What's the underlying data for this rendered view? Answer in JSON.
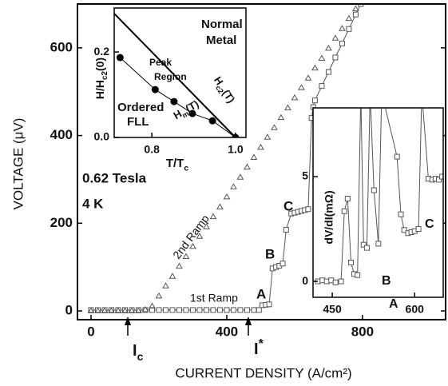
{
  "chart_data": [
    {
      "type": "line",
      "ylabel": "VOLTAGE (μV)",
      "xlabel": "CURRENT DENSITY (A/cm²)",
      "xlim": [
        -40,
        1045
      ],
      "ylim": [
        -20,
        700
      ],
      "xticks": [
        0,
        400,
        800
      ],
      "yticks": [
        0,
        200,
        400,
        600
      ],
      "series": [
        {
          "name": "1st Ramp",
          "marker": "square",
          "line": true,
          "color": "#555555",
          "x": [
            0,
            20,
            40,
            60,
            80,
            100,
            120,
            140,
            160,
            180,
            200,
            220,
            240,
            260,
            280,
            300,
            320,
            340,
            360,
            380,
            400,
            420,
            440,
            460,
            480,
            495,
            505,
            515,
            525,
            535,
            545,
            555,
            565,
            575,
            590,
            600,
            610,
            620,
            630,
            640,
            650,
            655,
            660,
            680,
            700,
            720,
            740,
            760,
            780,
            795
          ],
          "values": [
            2,
            2,
            2,
            2,
            2,
            2,
            2,
            2,
            2,
            2,
            2,
            2,
            2,
            2,
            2,
            2,
            2,
            2,
            2,
            2,
            2,
            2,
            2,
            2,
            2,
            2,
            13,
            14,
            15,
            97,
            100,
            103,
            108,
            185,
            222,
            224,
            226,
            228,
            230,
            232,
            440,
            465,
            480,
            513,
            545,
            578,
            610,
            643,
            676,
            700
          ]
        },
        {
          "name": "2nd Ramp",
          "marker": "triangle",
          "line": false,
          "color": "#555555",
          "x": [
            0,
            20,
            40,
            60,
            80,
            100,
            120,
            140,
            160,
            180,
            200,
            220,
            240,
            260,
            280,
            300,
            320,
            340,
            360,
            380,
            400,
            420,
            440,
            460,
            480,
            500,
            520,
            540,
            560,
            580,
            600,
            620,
            640,
            660,
            680,
            700,
            720,
            740,
            760,
            780
          ],
          "values": [
            0,
            0,
            0,
            0,
            0,
            0,
            0,
            0,
            3,
            11,
            34,
            57,
            79,
            102,
            124,
            147,
            170,
            192,
            215,
            237,
            260,
            283,
            305,
            328,
            350,
            373,
            396,
            418,
            441,
            463,
            486,
            509,
            531,
            554,
            576,
            599,
            622,
            644,
            667,
            689
          ]
        }
      ],
      "annotations": [
        "0.62 Tesla",
        "4 K",
        "2nd Ramp",
        "1st Ramp",
        "A",
        "B",
        "C",
        {
          "text": "I",
          "sub": "c"
        },
        {
          "text": "I",
          "sup": "*"
        }
      ]
    },
    {
      "type": "line",
      "xlabel": {
        "text": "T/T",
        "sub": "c"
      },
      "ylabel": {
        "text": "H/H",
        "sub": "c2",
        "rest": "(0)"
      },
      "xlim": [
        0.71,
        1.025
      ],
      "ylim": [
        0,
        0.303
      ],
      "xticks": [
        0.8,
        {
          "value": 1,
          "label": "1.0"
        }
      ],
      "yticks": [
        {
          "value": 0,
          "label": "0.0"
        },
        0.2
      ],
      "series": [
        {
          "marker": "none",
          "line": true,
          "color": "#000000",
          "x": [
            0.71,
            1.0
          ],
          "values": [
            0.29,
            0
          ]
        },
        {
          "marker": "circle",
          "line": true,
          "color": "#000000",
          "x": [
            0.724,
            0.808,
            0.853,
            0.897,
            0.945,
            1.0
          ],
          "values": [
            0.187,
            0.112,
            0.084,
            0.056,
            0.039,
            0
          ]
        }
      ],
      "annotations": [
        "Normal",
        "Metal",
        "Peak",
        "Region",
        "Ordered",
        "FLL",
        {
          "text": "H",
          "sub": "c2",
          "rest": "(T)"
        },
        {
          "text": "H",
          "sub": "m",
          "rest": "(T)"
        }
      ]
    },
    {
      "type": "line",
      "ylabel": "dV/dI(mΩ)",
      "xlim": [
        415,
        652
      ],
      "ylim": [
        -0.76,
        8.28
      ],
      "xticks": [
        450,
        600
      ],
      "yticks": [
        0,
        5
      ],
      "series": [
        {
          "marker": "square",
          "line": true,
          "color": "#555555",
          "x": [
            424,
            432,
            440,
            448,
            456,
            466,
            472,
            478,
            484,
            490,
            496,
            502,
            507,
            513,
            519,
            526,
            534,
            540,
            568,
            575,
            581,
            588,
            594,
            600,
            607,
            613,
            625,
            632,
            638,
            644,
            650
          ],
          "values": [
            0,
            0.05,
            0,
            0.05,
            -0.05,
            0,
            3.35,
            3.95,
            0.9,
            0.35,
            0.3,
            9,
            1.75,
            1.6,
            9,
            4.35,
            1.8,
            9,
            5.95,
            3.2,
            2.45,
            2.3,
            2.35,
            2.4,
            2.5,
            9,
            4.9,
            4.85,
            4.9,
            4.85,
            5.0
          ]
        }
      ],
      "annotations": [
        "A",
        "B",
        "C"
      ]
    }
  ]
}
